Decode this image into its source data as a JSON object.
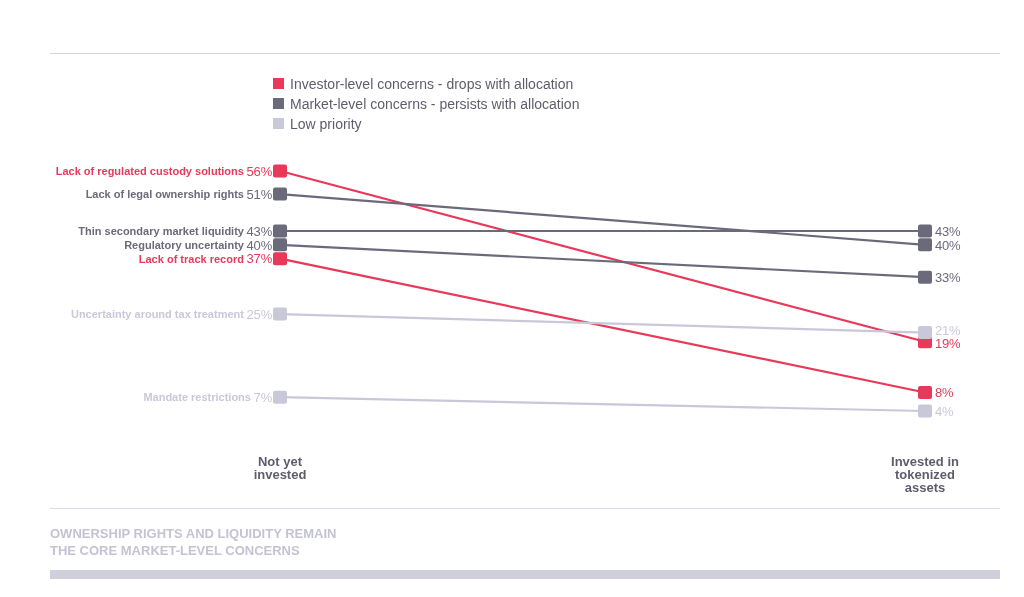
{
  "chart_data": {
    "type": "line",
    "title": "OWNERSHIP RIGHTS AND LIQUIDITY REMAIN THE CORE MARKET-LEVEL CONCERNS",
    "categories": [
      "Not yet invested",
      "Invested in tokenized assets"
    ],
    "series": [
      {
        "name": "Lack of regulated custody solutions",
        "color": "#e8395a",
        "values": [
          56,
          19
        ],
        "value_labels": [
          "56%",
          "19%"
        ]
      },
      {
        "name": "Lack of legal ownership rights",
        "color": "#6b6a7a",
        "values": [
          51,
          40
        ],
        "value_labels": [
          "51%",
          "40%"
        ]
      },
      {
        "name": "Thin secondary market liquidity",
        "color": "#6b6a7a",
        "values": [
          43,
          43
        ],
        "value_labels": [
          "43%",
          "43%"
        ]
      },
      {
        "name": "Regulatory uncertainty",
        "color": "#6b6a7a",
        "values": [
          40,
          33
        ],
        "value_labels": [
          "40%",
          "33%"
        ]
      },
      {
        "name": "Lack of track record",
        "color": "#e8395a",
        "values": [
          37,
          8
        ],
        "value_labels": [
          "37%",
          "8%"
        ]
      },
      {
        "name": "Uncertainty around tax treatment",
        "color": "#c9c8d8",
        "values": [
          25,
          21
        ],
        "value_labels": [
          "25%",
          "21%"
        ]
      },
      {
        "name": "Mandate restrictions",
        "color": "#c9c8d8",
        "values": [
          7,
          4
        ],
        "value_labels": [
          "7%",
          "4%"
        ]
      }
    ],
    "annotations": [
      "Investor-level concerns - drops with allocation",
      "Market-level concerns - persists with allocation",
      "Low priority"
    ],
    "legend": "top left",
    "marker": "square"
  }
}
